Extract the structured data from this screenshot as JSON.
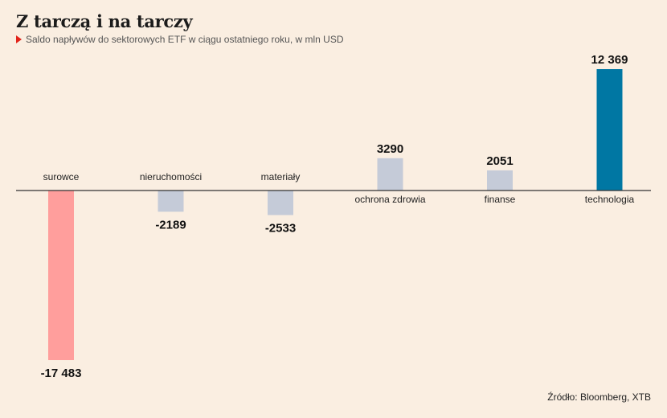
{
  "title": "Z tarczą i na tarczy",
  "subtitle": "Saldo napływów do sektorowych ETF w ciągu ostatniego roku, w mln USD",
  "source": "Źródło: Bloomberg, XTB",
  "colors": {
    "background": "#faeee1",
    "negative_highlight": "#ff9e9c",
    "neutral": "#c5cbd8",
    "positive_highlight": "#0077a3",
    "axis": "#333333"
  },
  "chart_data": {
    "type": "bar",
    "title": "Z tarczą i na tarczy",
    "subtitle": "Saldo napływów do sektorowych ETF w ciągu ostatniego roku, w mln USD",
    "categories": [
      "surowce",
      "nieruchomości",
      "materiały",
      "ochrona zdrowia",
      "finanse",
      "technologia"
    ],
    "values": [
      -17483,
      -2189,
      -2533,
      3290,
      2051,
      12369
    ],
    "value_labels": [
      "-17 483",
      "-2189",
      "-2533",
      "3290",
      "2051",
      "12 369"
    ],
    "bar_colors": [
      "#ff9e9c",
      "#c5cbd8",
      "#c5cbd8",
      "#c5cbd8",
      "#c5cbd8",
      "#0077a3"
    ],
    "ylim": [
      -17483,
      12369
    ],
    "grid": false,
    "legend": "none"
  }
}
